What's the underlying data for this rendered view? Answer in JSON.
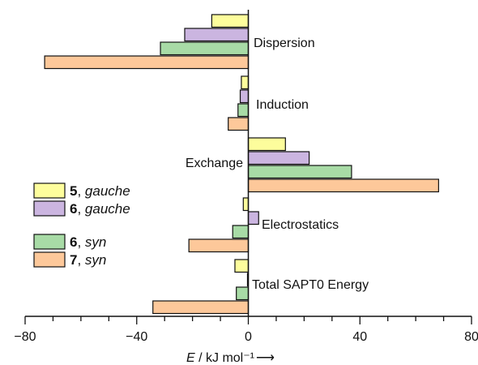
{
  "chart_data": {
    "type": "bar",
    "orientation": "horizontal",
    "categories": [
      "Dispersion",
      "Induction",
      "Exchange",
      "Electrostatics",
      "Total SAPT0 Energy"
    ],
    "series": [
      {
        "name_bold": "5",
        "name_italic": "gauche",
        "color": "#fdfd9c",
        "values": [
          -13.1,
          -2.5,
          13.3,
          -1.8,
          -4.8
        ]
      },
      {
        "name_bold": "6",
        "name_italic": "gauche",
        "color": "#cbb5e0",
        "values": [
          -22.8,
          -2.9,
          21.8,
          3.7,
          -0.3
        ]
      },
      {
        "name_bold": "6",
        "name_italic": "syn",
        "color": "#a8dba6",
        "values": [
          -31.5,
          -3.7,
          37.0,
          -5.6,
          -4.3
        ]
      },
      {
        "name_bold": "7",
        "name_italic": "syn",
        "color": "#fdc89a",
        "values": [
          -73.0,
          -7.2,
          68.2,
          -21.3,
          -34.2
        ]
      }
    ],
    "xlim": [
      -80,
      80
    ],
    "xticks": [
      -80,
      -40,
      0,
      40,
      80
    ],
    "xtick_labels": [
      "−80",
      "−40",
      "0",
      "40",
      "80"
    ],
    "xlabel": {
      "symbol": "E",
      "unit": " / kJ mol⁻¹",
      "arrow": "⟶"
    },
    "legend_separator": ", ",
    "legend_position": "left",
    "grid": false
  }
}
